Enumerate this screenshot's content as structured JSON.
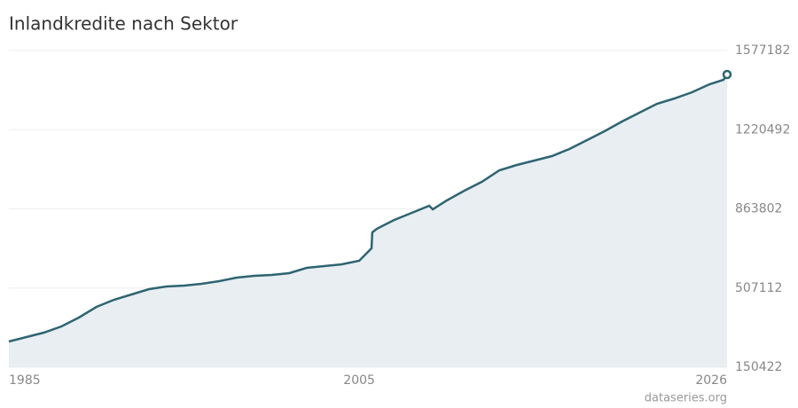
{
  "chart_data": {
    "type": "area",
    "title": "Inlandkredite nach Sektor",
    "source": "dataseries.org",
    "x": [
      1985,
      1986,
      1987,
      1988,
      1989,
      1990,
      1991,
      1992,
      1993,
      1994,
      1995,
      1996,
      1997,
      1998,
      1999,
      2000,
      2001,
      2002,
      2003,
      2004,
      2005,
      2005.7,
      2005.75,
      2006,
      2007,
      2008,
      2009,
      2009.2,
      2010,
      2011,
      2012,
      2013,
      2014,
      2015,
      2016,
      2017,
      2018,
      2019,
      2020,
      2021,
      2022,
      2023,
      2024,
      2025,
      2025.8,
      2026
    ],
    "values": [
      266300,
      286300,
      306300,
      334300,
      374300,
      422000,
      454200,
      478200,
      502100,
      514100,
      518100,
      526100,
      538100,
      554100,
      562100,
      566100,
      574100,
      598000,
      606000,
      614000,
      630000,
      686000,
      757900,
      773800,
      813800,
      845800,
      877700,
      861700,
      901700,
      945700,
      985600,
      1037600,
      1061600,
      1081600,
      1101500,
      1133500,
      1173400,
      1213400,
      1257400,
      1297300,
      1337300,
      1361300,
      1389300,
      1425200,
      1445200,
      1469300
    ],
    "color": "#2e6472",
    "fill": "#e8eef1",
    "xlim": [
      1985,
      2026
    ],
    "xticks": [
      1985,
      2005,
      2026
    ],
    "ylim": [
      150422,
      1577182
    ],
    "yticks": [
      150422,
      507112,
      863802,
      1220492,
      1577182
    ],
    "grid": true
  }
}
